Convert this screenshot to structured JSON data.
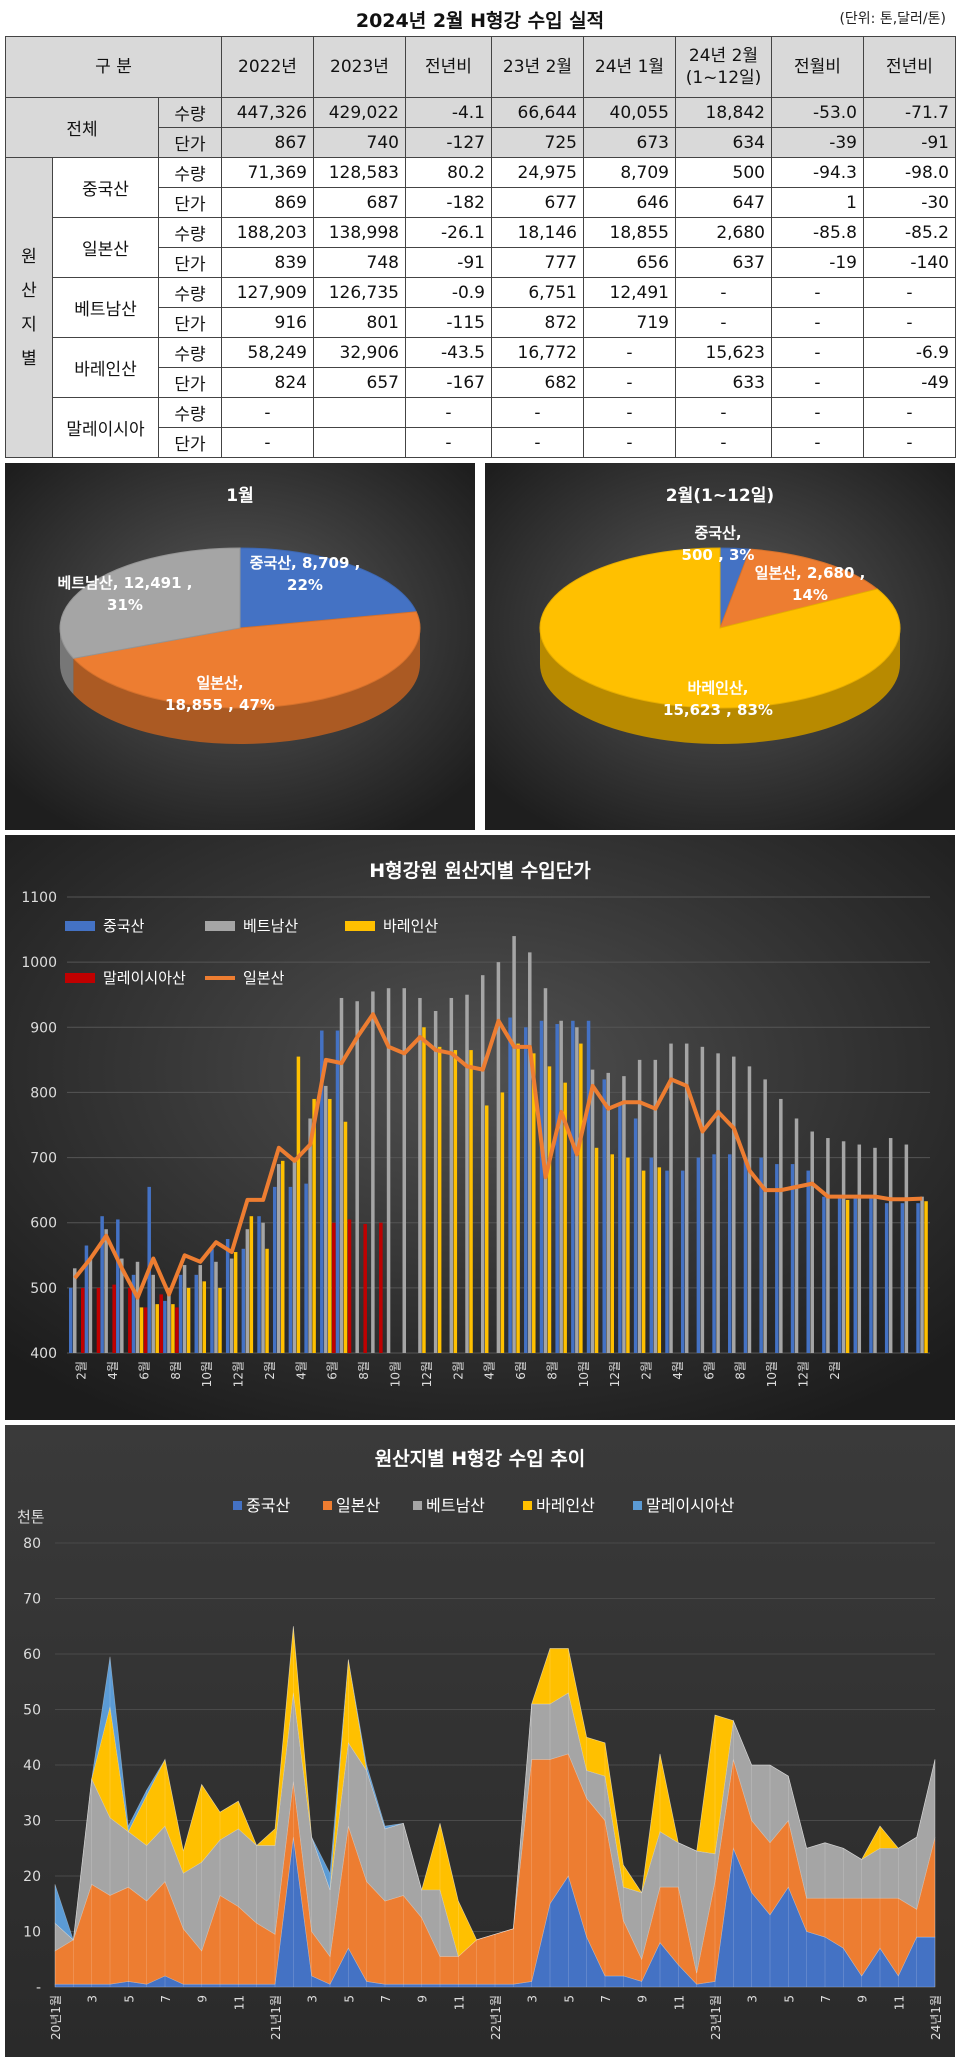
{
  "header": {
    "title": "2024년 2월 H형강 수입 실적",
    "unit": "(단위: 톤,달러/톤)"
  },
  "table": {
    "corner": "구 분",
    "columns": [
      "2022년",
      "2023년",
      "전년비",
      "23년 2월",
      "24년 1월",
      "24년 2월",
      "(1~12일)",
      "전월비",
      "전년비"
    ],
    "total_label": "전체",
    "origin_label": [
      "원",
      "산",
      "지",
      "별"
    ],
    "metric_qty": "수량",
    "metric_price": "단가",
    "rows": [
      {
        "group": "전체",
        "qty": [
          "447,326",
          "429,022",
          "-4.1",
          "66,644",
          "40,055",
          "18,842",
          "-53.0",
          "-71.7"
        ],
        "price": [
          "867",
          "740",
          "-127",
          "725",
          "673",
          "634",
          "-39",
          "-91"
        ]
      },
      {
        "group": "중국산",
        "qty": [
          "71,369",
          "128,583",
          "80.2",
          "24,975",
          "8,709",
          "500",
          "-94.3",
          "-98.0"
        ],
        "price": [
          "869",
          "687",
          "-182",
          "677",
          "646",
          "647",
          "1",
          "-30"
        ]
      },
      {
        "group": "일본산",
        "qty": [
          "188,203",
          "138,998",
          "-26.1",
          "18,146",
          "18,855",
          "2,680",
          "-85.8",
          "-85.2"
        ],
        "price": [
          "839",
          "748",
          "-91",
          "777",
          "656",
          "637",
          "-19",
          "-140"
        ]
      },
      {
        "group": "베트남산",
        "qty": [
          "127,909",
          "126,735",
          "-0.9",
          "6,751",
          "12,491",
          "-",
          "-",
          "-"
        ],
        "price": [
          "916",
          "801",
          "-115",
          "872",
          "719",
          "-",
          "-",
          "-"
        ]
      },
      {
        "group": "바레인산",
        "qty": [
          "58,249",
          "32,906",
          "-43.5",
          "16,772",
          "-",
          "15,623",
          "-",
          "-6.9"
        ],
        "price": [
          "824",
          "657",
          "-167",
          "682",
          "-",
          "633",
          "-",
          "-49"
        ]
      },
      {
        "group": "말레이시아",
        "qty": [
          "-",
          "",
          "-",
          "-",
          "-",
          "-",
          "-",
          "-"
        ],
        "price": [
          "-",
          "",
          "-",
          "-",
          "-",
          "-",
          "-",
          "-"
        ]
      }
    ]
  },
  "chart_data": [
    {
      "type": "pie",
      "title": "1월",
      "slices": [
        {
          "name": "중국산",
          "value": 8709,
          "percent": "22%",
          "label_value": "8,709",
          "color": "#4472c4"
        },
        {
          "name": "일본산",
          "value": 18855,
          "percent": "47%",
          "label_value": "18,855",
          "color": "#ed7d31"
        },
        {
          "name": "베트남산",
          "value": 12491,
          "percent": "31%",
          "label_value": "12,491",
          "color": "#a5a5a5"
        }
      ]
    },
    {
      "type": "pie",
      "title": "2월(1~12일)",
      "slices": [
        {
          "name": "중국산",
          "value": 500,
          "percent": "3%",
          "label_value": "500",
          "color": "#4472c4"
        },
        {
          "name": "일본산",
          "value": 2680,
          "percent": "14%",
          "label_value": "2,680",
          "color": "#ed7d31"
        },
        {
          "name": "바레인산",
          "value": 15623,
          "percent": "83%",
          "label_value": "15,623",
          "color": "#ffc000"
        }
      ]
    },
    {
      "type": "bar",
      "title": "H형강원 원산지별 수입단가",
      "ylim": [
        400,
        1100
      ],
      "yticks": [
        400,
        500,
        600,
        700,
        800,
        900,
        1000,
        1100
      ],
      "grid": true,
      "legend_position": "top-left",
      "x_tick_labels": [
        "2월",
        "4월",
        "6월",
        "8월",
        "10월",
        "12월",
        "2월",
        "4월",
        "6월",
        "8월",
        "10월",
        "12월",
        "2월",
        "4월",
        "6월",
        "8월",
        "10월",
        "12월",
        "2월",
        "4월",
        "6월",
        "8월",
        "10월",
        "12월",
        "2월"
      ],
      "series": [
        {
          "name": "중국산",
          "kind": "bar",
          "color": "#4472c4",
          "values": [
            500,
            565,
            610,
            605,
            520,
            655,
            480,
            520,
            520,
            560,
            575,
            560,
            610,
            655,
            655,
            660,
            895,
            895,
            null,
            null,
            null,
            null,
            null,
            null,
            null,
            null,
            null,
            null,
            915,
            900,
            910,
            905,
            910,
            910,
            820,
            780,
            760,
            700,
            680,
            680,
            700,
            705,
            705,
            700,
            700,
            690,
            690,
            680,
            640,
            640,
            640,
            640,
            630,
            630,
            630
          ]
        },
        {
          "name": "베트남산",
          "kind": "bar",
          "color": "#a5a5a5",
          "values": [
            530,
            545,
            590,
            545,
            540,
            520,
            500,
            535,
            535,
            540,
            545,
            590,
            600,
            690,
            700,
            760,
            810,
            945,
            940,
            955,
            960,
            960,
            945,
            925,
            945,
            950,
            980,
            1000,
            1040,
            1015,
            960,
            910,
            900,
            835,
            830,
            825,
            850,
            850,
            875,
            875,
            870,
            860,
            855,
            840,
            820,
            790,
            760,
            740,
            730,
            725,
            720,
            715,
            730,
            720,
            640
          ]
        },
        {
          "name": "바레인산",
          "kind": "bar",
          "color": "#ffc000",
          "values": [
            null,
            null,
            null,
            null,
            470,
            475,
            475,
            500,
            510,
            500,
            555,
            610,
            560,
            695,
            855,
            790,
            790,
            755,
            null,
            null,
            null,
            null,
            900,
            870,
            865,
            865,
            780,
            800,
            875,
            860,
            840,
            815,
            875,
            715,
            705,
            700,
            680,
            685,
            null,
            null,
            null,
            null,
            null,
            null,
            null,
            null,
            null,
            null,
            null,
            635,
            null,
            null,
            null,
            null,
            633
          ]
        },
        {
          "name": "말레이시아산",
          "kind": "bar",
          "color": "#c00000",
          "values": [
            500,
            500,
            505,
            500,
            470,
            490,
            470,
            null,
            null,
            null,
            null,
            null,
            null,
            null,
            null,
            null,
            600,
            605,
            598,
            600,
            null,
            null,
            null,
            null,
            null,
            null,
            null,
            null,
            null,
            null,
            null,
            null,
            null,
            null,
            null,
            null,
            null,
            null,
            null,
            null,
            null,
            null,
            null,
            null,
            null,
            null,
            null,
            null,
            null,
            null,
            null,
            null,
            null,
            null,
            null
          ]
        },
        {
          "name": "일본산",
          "kind": "line",
          "color": "#ed7d31",
          "values": [
            515,
            545,
            580,
            530,
            485,
            545,
            490,
            550,
            540,
            570,
            555,
            635,
            635,
            715,
            695,
            720,
            850,
            845,
            885,
            920,
            870,
            860,
            885,
            865,
            860,
            840,
            835,
            910,
            870,
            870,
            670,
            770,
            705,
            810,
            775,
            785,
            785,
            775,
            820,
            810,
            740,
            770,
            745,
            680,
            650,
            650,
            655,
            660,
            640,
            640,
            640,
            640,
            636,
            636,
            637
          ]
        }
      ]
    },
    {
      "type": "area",
      "title": "원산지별 H형강 수입 추이",
      "ylabel": "천톤",
      "ylim": [
        0,
        80
      ],
      "yticks": [
        "-",
        "10",
        "20",
        "30",
        "40",
        "50",
        "60",
        "70",
        "80"
      ],
      "legend_position": "top",
      "x_tick_labels": [
        "20년1월",
        "3",
        "5",
        "7",
        "9",
        "11",
        "21년1월",
        "3",
        "5",
        "7",
        "9",
        "11",
        "22년1월",
        "3",
        "5",
        "7",
        "9",
        "11",
        "23년1월",
        "3",
        "5",
        "7",
        "9",
        "11",
        "24년1월"
      ],
      "series": [
        {
          "name": "중국산",
          "color": "#4472c4",
          "values": [
            0.5,
            0.5,
            0.5,
            0.5,
            1,
            0.5,
            2,
            0.5,
            0.5,
            0.5,
            0.5,
            0.5,
            0.5,
            27,
            2,
            0.5,
            7,
            1,
            0.5,
            0.5,
            0.5,
            0.5,
            0.5,
            0.5,
            0.5,
            0.5,
            1,
            15,
            20,
            9,
            2,
            2,
            1,
            8,
            4,
            0.5,
            1,
            25,
            17,
            13,
            18,
            10,
            9,
            7,
            2,
            7,
            2,
            9,
            9
          ]
        },
        {
          "name": "일본산",
          "color": "#ed7d31",
          "values": [
            6,
            8,
            18,
            16,
            17,
            15,
            17,
            10,
            6,
            16,
            14,
            11,
            9,
            10,
            8,
            5,
            22,
            18,
            15,
            16,
            12,
            5,
            5,
            8,
            9,
            10,
            40,
            26,
            22,
            25,
            28,
            10,
            4,
            10,
            14,
            2,
            18,
            16,
            13,
            13,
            12,
            6,
            7,
            9,
            14,
            9,
            14,
            5,
            18
          ]
        },
        {
          "name": "베트남산",
          "color": "#a5a5a5",
          "values": [
            5,
            0,
            19,
            14,
            10,
            10,
            10,
            10,
            16,
            10,
            14,
            14,
            16,
            16,
            17,
            12,
            15,
            20,
            13,
            13,
            5,
            12,
            0,
            0,
            0,
            0,
            10,
            10,
            11,
            5,
            8,
            6,
            12,
            10,
            8,
            22,
            5,
            7,
            10,
            14,
            8,
            9,
            10,
            9,
            7,
            9,
            9,
            13,
            14
          ]
        },
        {
          "name": "바레인산",
          "color": "#ffc000",
          "values": [
            0,
            0,
            0,
            20,
            0,
            9,
            12,
            4,
            14,
            5,
            5,
            0,
            3,
            12,
            0,
            0,
            15,
            0,
            0,
            0,
            0,
            12,
            10,
            0,
            0,
            0,
            0,
            10,
            8,
            6,
            6,
            4,
            0,
            14,
            0,
            0,
            25,
            0,
            0,
            0,
            0,
            0,
            0,
            0,
            0,
            4,
            0,
            0,
            0
          ]
        },
        {
          "name": "말레이시아산",
          "color": "#5b9bd5",
          "values": [
            7,
            0,
            0,
            9,
            1,
            1,
            0,
            0,
            0,
            0,
            0,
            0,
            0,
            0,
            0,
            3,
            0,
            1,
            0.5,
            0,
            0,
            0,
            0,
            0,
            0,
            0,
            0,
            0,
            0,
            0,
            0,
            0,
            0,
            0,
            0,
            0,
            0,
            0,
            0,
            0,
            0,
            0,
            0,
            0,
            0,
            0,
            0,
            0,
            0
          ]
        }
      ]
    }
  ]
}
